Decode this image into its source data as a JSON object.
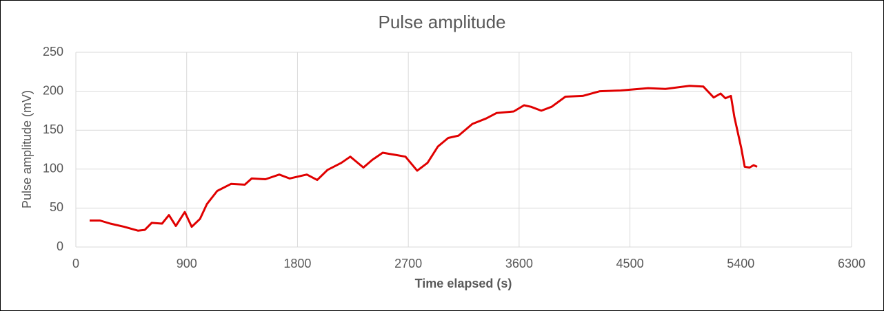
{
  "chart_data": {
    "type": "line",
    "title": "Pulse amplitude",
    "x_label": "Time elapsed (s)",
    "y_label": "Pulse amplitude (mV)",
    "x": [
      112,
      196,
      280,
      392,
      504,
      560,
      616,
      700,
      756,
      812,
      885,
      941,
      1008,
      1064,
      1148,
      1260,
      1372,
      1428,
      1540,
      1652,
      1736,
      1876,
      1960,
      2044,
      2156,
      2229,
      2335,
      2408,
      2492,
      2604,
      2677,
      2772,
      2856,
      2940,
      3024,
      3108,
      3220,
      3332,
      3416,
      3556,
      3640,
      3696,
      3780,
      3864,
      3976,
      4116,
      4256,
      4424,
      4648,
      4788,
      4984,
      5096,
      5180,
      5236,
      5275,
      5320,
      5348,
      5404,
      5432,
      5471,
      5505,
      5533
    ],
    "series": [
      {
        "name": "Pulse amplitude",
        "color": "#e00000",
        "values": [
          34,
          34,
          30,
          26,
          21,
          22,
          31,
          30,
          41,
          27,
          45,
          26,
          36,
          55,
          72,
          81,
          80,
          88,
          87,
          93,
          88,
          93,
          86,
          99,
          108,
          116,
          102,
          112,
          121,
          118,
          116,
          98,
          108,
          129,
          140,
          143,
          158,
          165,
          172,
          174,
          182,
          180,
          175,
          180,
          193,
          194,
          200,
          201,
          204,
          203,
          207,
          206,
          192,
          197,
          191,
          194,
          167,
          127,
          103,
          102,
          105,
          103
        ]
      }
    ],
    "xlim": [
      0,
      6300
    ],
    "xticks": [
      0,
      900,
      1800,
      2700,
      3600,
      4500,
      5400,
      6300
    ],
    "ylim": [
      0,
      250
    ],
    "yticks": [
      0,
      50,
      100,
      150,
      200,
      250
    ],
    "grid": true
  }
}
